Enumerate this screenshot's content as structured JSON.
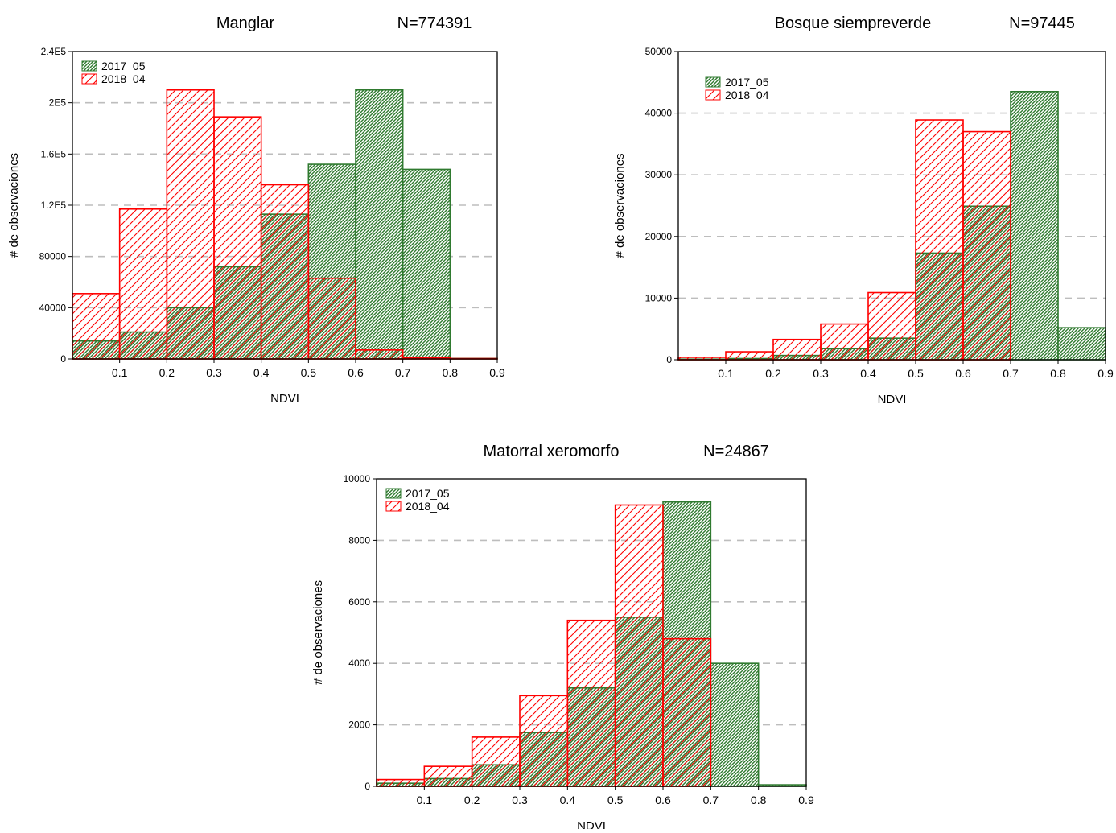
{
  "colors": {
    "series_2017": "#2f7a2f",
    "series_2018": "#ff0000",
    "grid": "#bdbdbd",
    "frame": "#000000"
  },
  "chart_data": [
    {
      "type": "bar",
      "title": "Manglar",
      "n_label": "N=774391",
      "xlabel": "NDVI",
      "ylabel": "# de observaciones",
      "xlim": [
        0.0,
        0.9
      ],
      "ylim": [
        0,
        240000
      ],
      "x_ticks": [
        "0.1",
        "0.2",
        "0.3",
        "0.4",
        "0.5",
        "0.6",
        "0.7",
        "0.8",
        "0.9"
      ],
      "y_ticks": [
        {
          "v": 0,
          "label": "0"
        },
        {
          "v": 40000,
          "label": "40000"
        },
        {
          "v": 80000,
          "label": "80000"
        },
        {
          "v": 120000,
          "label": "1.2E5"
        },
        {
          "v": 160000,
          "label": "1.6E5"
        },
        {
          "v": 200000,
          "label": "2E5"
        },
        {
          "v": 240000,
          "label": "2.4E5"
        }
      ],
      "grid": true,
      "legend": "top-left",
      "bin_edges": [
        0.0,
        0.1,
        0.2,
        0.3,
        0.4,
        0.5,
        0.6,
        0.7,
        0.8,
        0.9
      ],
      "series": [
        {
          "name": "2017_05",
          "values": [
            14000,
            21000,
            40000,
            72000,
            113000,
            152000,
            210000,
            148000,
            400
          ]
        },
        {
          "name": "2018_04",
          "values": [
            51000,
            117000,
            210000,
            189000,
            136000,
            63000,
            7000,
            800,
            300
          ]
        }
      ]
    },
    {
      "type": "bar",
      "title": "Bosque siempreverde",
      "n_label": "N=97445",
      "xlabel": "NDVI",
      "ylabel": "# de observaciones",
      "xlim": [
        0.0,
        0.9
      ],
      "ylim": [
        0,
        50000
      ],
      "x_ticks": [
        "0.1",
        "0.2",
        "0.3",
        "0.4",
        "0.5",
        "0.6",
        "0.7",
        "0.8",
        "0.9"
      ],
      "y_ticks": [
        {
          "v": 0,
          "label": "0"
        },
        {
          "v": 10000,
          "label": "10000"
        },
        {
          "v": 20000,
          "label": "20000"
        },
        {
          "v": 30000,
          "label": "30000"
        },
        {
          "v": 40000,
          "label": "40000"
        },
        {
          "v": 50000,
          "label": "50000"
        }
      ],
      "grid": true,
      "legend": "top-left",
      "bin_edges": [
        0.0,
        0.1,
        0.2,
        0.3,
        0.4,
        0.5,
        0.6,
        0.7,
        0.8,
        0.9
      ],
      "series": [
        {
          "name": "2017_05",
          "values": [
            100,
            200,
            700,
            1800,
            3500,
            17300,
            24900,
            43500,
            5200
          ]
        },
        {
          "name": "2018_04",
          "values": [
            400,
            1300,
            3300,
            5800,
            10900,
            38900,
            37000,
            0,
            0
          ]
        }
      ]
    },
    {
      "type": "bar",
      "title": "Matorral xeromorfo",
      "n_label": "N=24867",
      "xlabel": "NDVI",
      "ylabel": "# de observaciones",
      "xlim": [
        0.0,
        0.9
      ],
      "ylim": [
        0,
        10000
      ],
      "x_ticks": [
        "0.1",
        "0.2",
        "0.3",
        "0.4",
        "0.5",
        "0.6",
        "0.7",
        "0.8",
        "0.9"
      ],
      "y_ticks": [
        {
          "v": 0,
          "label": "0"
        },
        {
          "v": 2000,
          "label": "2000"
        },
        {
          "v": 4000,
          "label": "4000"
        },
        {
          "v": 6000,
          "label": "6000"
        },
        {
          "v": 8000,
          "label": "8000"
        },
        {
          "v": 10000,
          "label": "10000"
        }
      ],
      "grid": true,
      "legend": "top-left",
      "bin_edges": [
        0.0,
        0.1,
        0.2,
        0.3,
        0.4,
        0.5,
        0.6,
        0.7,
        0.8,
        0.9
      ],
      "series": [
        {
          "name": "2017_05",
          "values": [
            100,
            250,
            700,
            1750,
            3200,
            5500,
            9250,
            4000,
            50
          ]
        },
        {
          "name": "2018_04",
          "values": [
            220,
            650,
            1600,
            2950,
            5400,
            9150,
            4800,
            0,
            0
          ]
        }
      ]
    }
  ]
}
